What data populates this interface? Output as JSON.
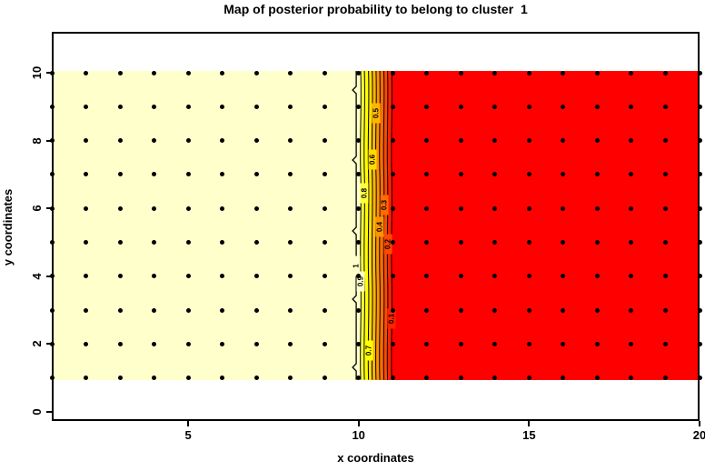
{
  "chart_data": {
    "type": "heatmap",
    "title": "Map of posterior probability to belong to cluster  1",
    "xlabel": "x coordinates",
    "ylabel": "y coordinates",
    "xlim": [
      1,
      20
    ],
    "ylim": [
      0,
      11.2
    ],
    "x_ticks": [
      5,
      10,
      15,
      20
    ],
    "y_ticks": [
      0,
      2,
      4,
      6,
      8,
      10
    ],
    "grid_on": false,
    "legend": "none",
    "description": "Filled contour map of the posterior probability of belonging to cluster 1, drawn over the rectangle x=1..20, y=1..10. Probability is ~1 (pale cream) for x<=10 and ~0 (red) for x>=11, with a sharp vertical transition band between x=10 and x=11 crossed by labelled contour lines at levels 0.9 down to 0.1, plus a wavy line at level 1 just left of the band. A 20x10 lattice of black dots marks the data grid points at every integer (x,y).",
    "grid_points": {
      "marker": "filled-circle",
      "color": "#000000",
      "x_values": [
        1,
        2,
        3,
        4,
        5,
        6,
        7,
        8,
        9,
        10,
        11,
        12,
        13,
        14,
        15,
        16,
        17,
        18,
        19,
        20
      ],
      "y_values": [
        1,
        2,
        3,
        4,
        5,
        6,
        7,
        8,
        9,
        10
      ]
    },
    "fill_y_range": [
      1,
      10
    ],
    "bands": [
      {
        "x_from": 1,
        "x_to": 10.06,
        "color": "#FFFFCC",
        "level_range": "1.0-0.9"
      },
      {
        "x_from": 10.06,
        "x_to": 10.17,
        "color": "#FFFF40",
        "level_range": "0.9-0.8"
      },
      {
        "x_from": 10.17,
        "x_to": 10.29,
        "color": "#FFFF00",
        "level_range": "0.8-0.7"
      },
      {
        "x_from": 10.29,
        "x_to": 10.4,
        "color": "#FFDB00",
        "level_range": "0.7-0.6"
      },
      {
        "x_from": 10.4,
        "x_to": 10.51,
        "color": "#FFB600",
        "level_range": "0.6-0.5"
      },
      {
        "x_from": 10.51,
        "x_to": 10.62,
        "color": "#FF9200",
        "level_range": "0.5-0.4"
      },
      {
        "x_from": 10.62,
        "x_to": 10.74,
        "color": "#FF6D00",
        "level_range": "0.4-0.3"
      },
      {
        "x_from": 10.74,
        "x_to": 10.85,
        "color": "#FF4900",
        "level_range": "0.3-0.2"
      },
      {
        "x_from": 10.85,
        "x_to": 10.97,
        "color": "#FF2400",
        "level_range": "0.2-0.1"
      },
      {
        "x_from": 10.97,
        "x_to": 20,
        "color": "#FF0000",
        "level_range": "0.1-0.0"
      }
    ],
    "contours": [
      {
        "level": "1",
        "x": 9.93,
        "label_y": 4.3,
        "band_color": "#FFFFCC",
        "style": "wavy"
      },
      {
        "level": "0.9",
        "x": 10.06,
        "label_y": 3.85,
        "band_color": "#FFFFCC",
        "style": "straight"
      },
      {
        "level": "0.8",
        "x": 10.17,
        "label_y": 6.45,
        "band_color": "#FFFF40",
        "style": "straight"
      },
      {
        "level": "0.7",
        "x": 10.29,
        "label_y": 1.82,
        "band_color": "#FFFF00",
        "style": "straight"
      },
      {
        "level": "0.6",
        "x": 10.4,
        "label_y": 7.45,
        "band_color": "#FFDB00",
        "style": "straight"
      },
      {
        "level": "0.5",
        "x": 10.51,
        "label_y": 8.8,
        "band_color": "#FFB600",
        "style": "straight"
      },
      {
        "level": "0.4",
        "x": 10.62,
        "label_y": 5.45,
        "band_color": "#FF9200",
        "style": "straight"
      },
      {
        "level": "0.3",
        "x": 10.74,
        "label_y": 6.1,
        "band_color": "#FF6D00",
        "style": "straight"
      },
      {
        "level": "0.2",
        "x": 10.85,
        "label_y": 4.95,
        "band_color": "#FF4900",
        "style": "straight"
      },
      {
        "level": "0.1",
        "x": 10.97,
        "label_y": 2.76,
        "band_color": "#FF2400",
        "style": "straight"
      }
    ]
  }
}
